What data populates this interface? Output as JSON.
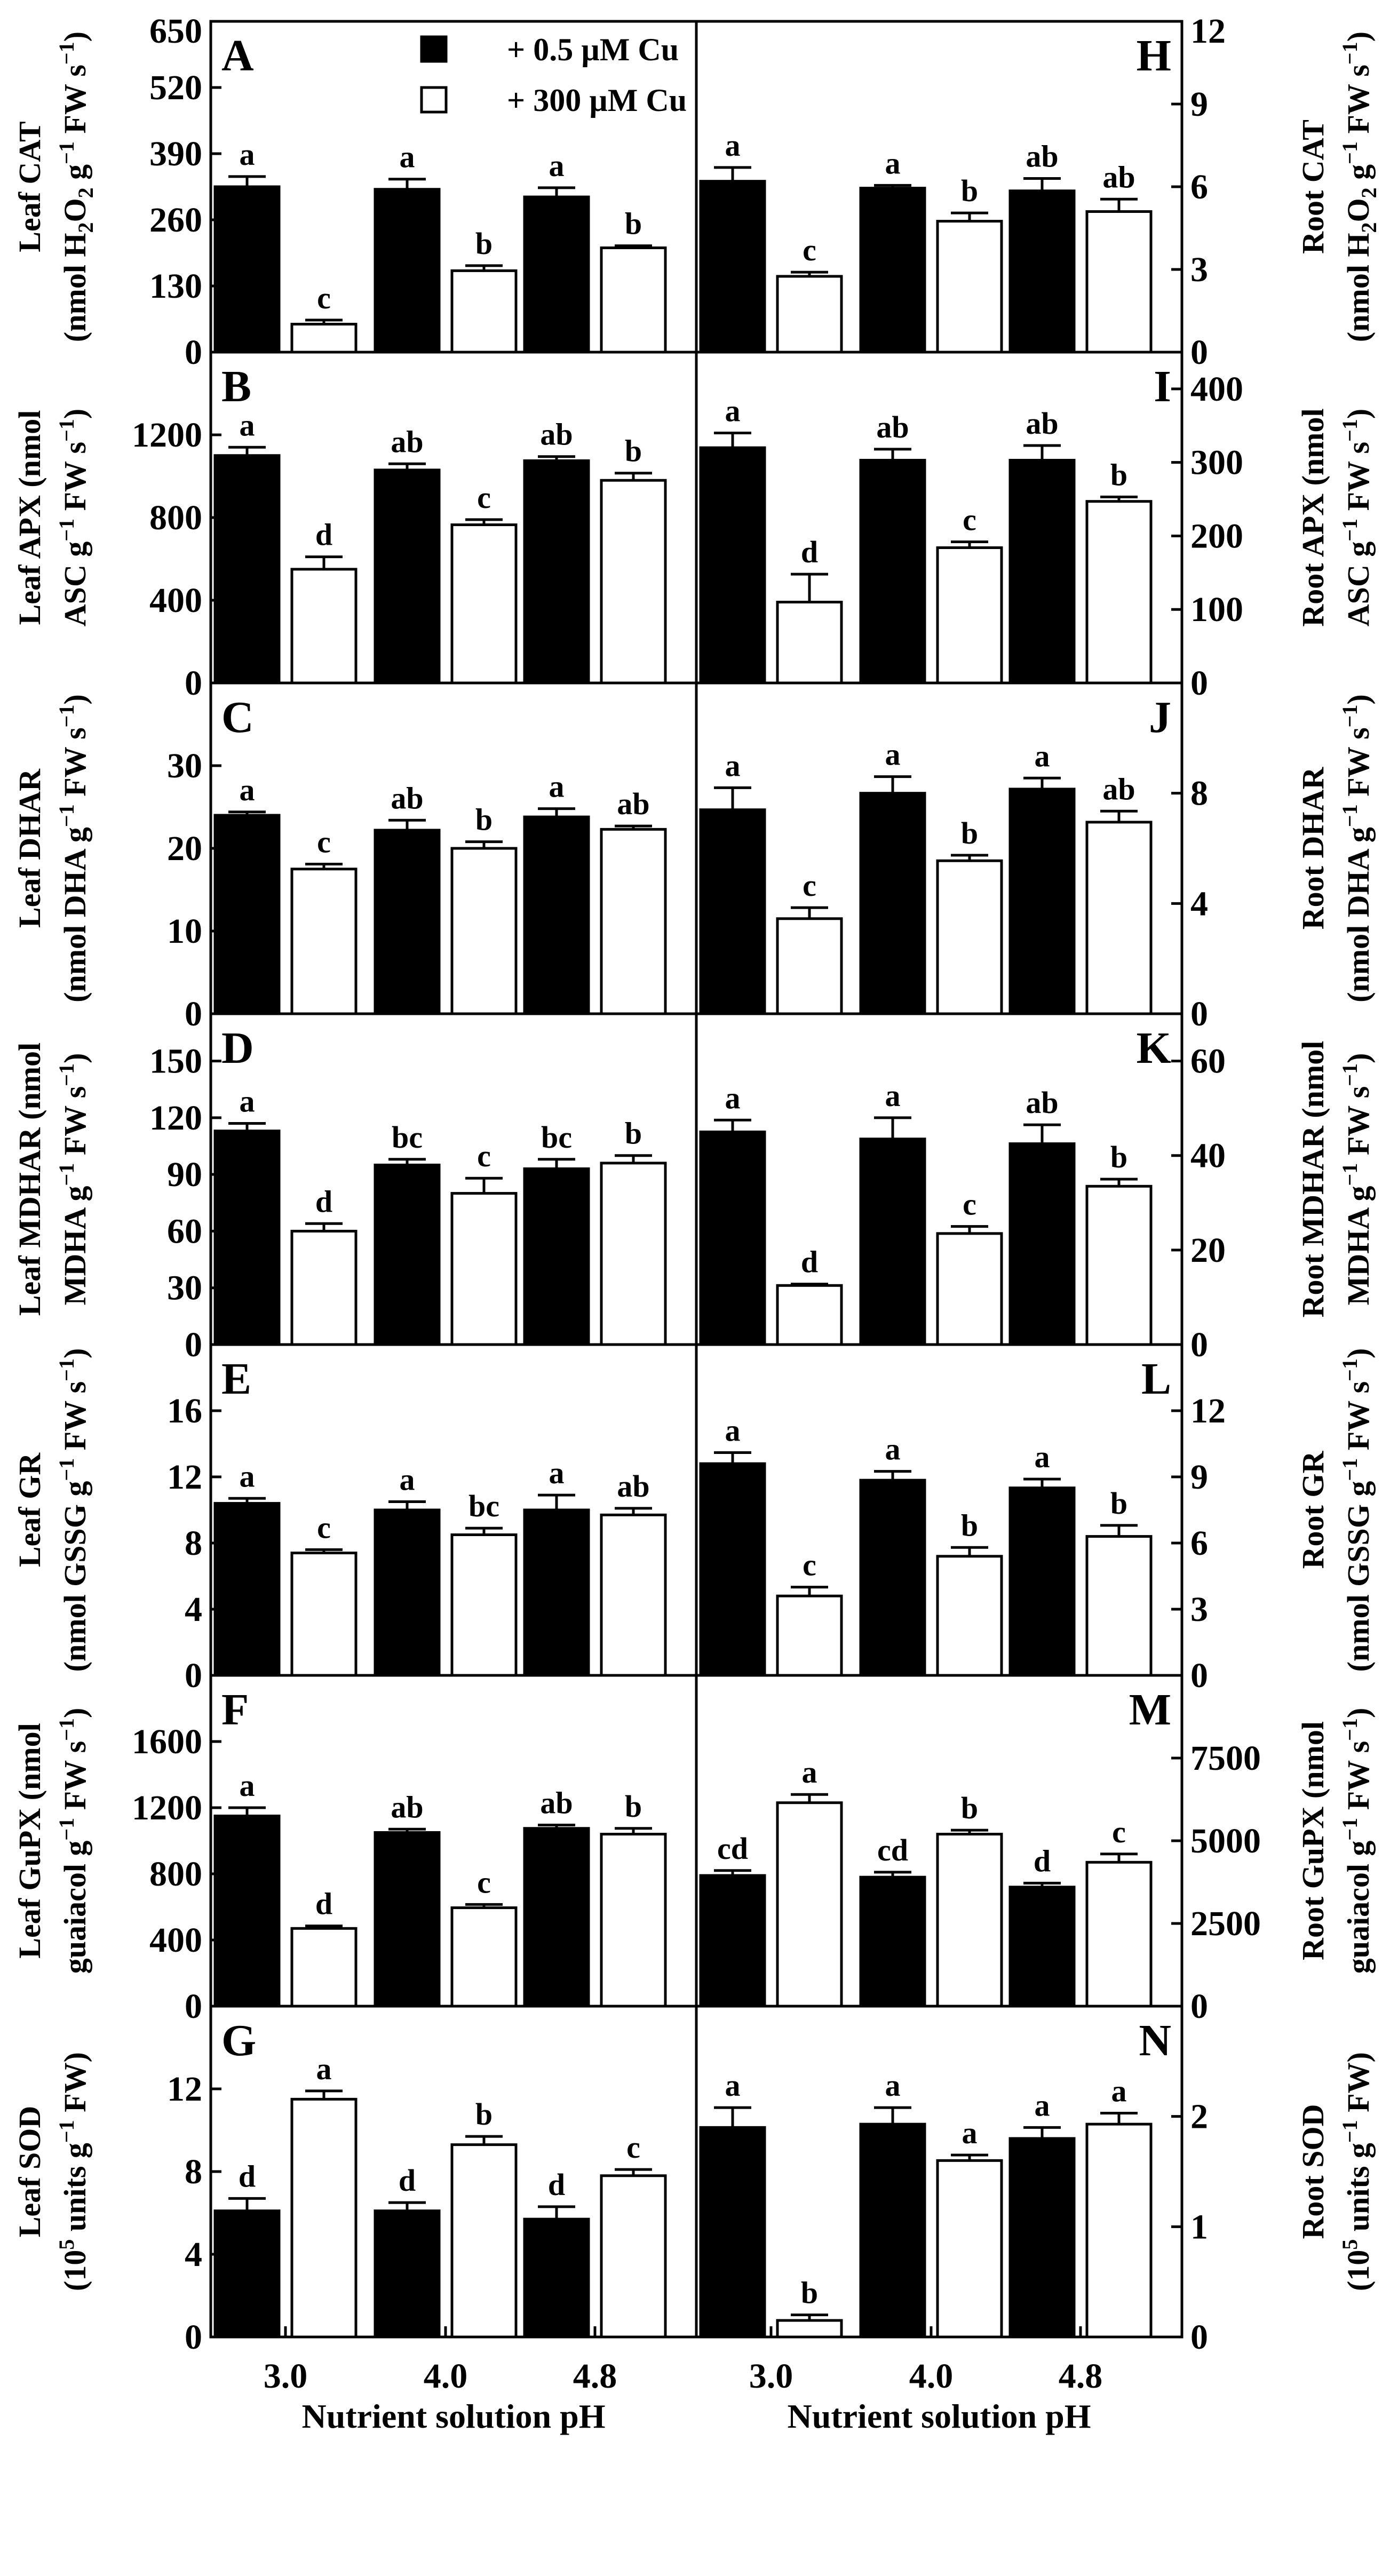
{
  "chart_data": {
    "type": "bar",
    "categories": [
      "3.0",
      "4.0",
      "4.8"
    ],
    "x_title": "Nutrient solution pH",
    "legend": [
      "+ 0.5 µM Cu",
      "+ 300 µM Cu"
    ],
    "colors": {
      "series1": "#000000",
      "series2": "#ffffff"
    },
    "panels": [
      {
        "id": "A",
        "side": "left",
        "row": 0,
        "ylabel": [
          [
            "Leaf CAT"
          ],
          [
            "(nmol H",
            {
              "sub": "2"
            },
            "O",
            {
              "sub": "2"
            },
            " g",
            {
              "sup": "−1"
            },
            " FW s",
            {
              "sup": "−1"
            },
            ")"
          ]
        ],
        "ylim": [
          0,
          650
        ],
        "ticks": [
          0,
          130,
          260,
          390,
          520,
          650
        ],
        "values": [
          [
            325,
            320,
            305
          ],
          [
            55,
            160,
            205
          ]
        ],
        "errors": [
          [
            20,
            20,
            18
          ],
          [
            8,
            10,
            4
          ]
        ],
        "letters": [
          [
            "a",
            "a",
            "a"
          ],
          [
            "c",
            "b",
            "b"
          ]
        ]
      },
      {
        "id": "B",
        "side": "left",
        "row": 1,
        "ylabel": [
          [
            "Leaf APX (nmol"
          ],
          [
            "ASC g",
            {
              "sup": "−1"
            },
            " FW s",
            {
              "sup": "−1"
            },
            ")"
          ]
        ],
        "ylim": [
          0,
          1600
        ],
        "ticks": [
          0,
          400,
          800,
          1200
        ],
        "values": [
          [
            1100,
            1030,
            1075
          ],
          [
            550,
            765,
            980
          ]
        ],
        "errors": [
          [
            40,
            30,
            20
          ],
          [
            60,
            25,
            35
          ]
        ],
        "letters": [
          [
            "a",
            "ab",
            "ab"
          ],
          [
            "d",
            "c",
            "b"
          ]
        ]
      },
      {
        "id": "C",
        "side": "left",
        "row": 2,
        "ylabel": [
          [
            "Leaf DHAR"
          ],
          [
            "(nmol DHA g",
            {
              "sup": "−1"
            },
            " FW s",
            {
              "sup": "−1"
            },
            ")"
          ]
        ],
        "ylim": [
          0,
          40
        ],
        "ticks": [
          0,
          10,
          20,
          30
        ],
        "values": [
          [
            24,
            22.2,
            23.8
          ],
          [
            17.5,
            20,
            22.3
          ]
        ],
        "errors": [
          [
            0.4,
            1.2,
            1.0
          ],
          [
            0.6,
            0.8,
            0.4
          ]
        ],
        "letters": [
          [
            "a",
            "ab",
            "a"
          ],
          [
            "c",
            "b",
            "ab"
          ]
        ]
      },
      {
        "id": "D",
        "side": "left",
        "row": 3,
        "ylabel": [
          [
            "Leaf MDHAR (nmol"
          ],
          [
            "MDHA g",
            {
              "sup": "−1"
            },
            " FW s",
            {
              "sup": "−1"
            },
            ")"
          ]
        ],
        "ylim": [
          0,
          175
        ],
        "ticks": [
          0,
          30,
          60,
          90,
          120,
          150
        ],
        "values": [
          [
            113,
            95,
            93
          ],
          [
            60,
            80,
            96
          ]
        ],
        "errors": [
          [
            4,
            3,
            5
          ],
          [
            4,
            8,
            4
          ]
        ],
        "letters": [
          [
            "a",
            "bc",
            "bc"
          ],
          [
            "d",
            "c",
            "b"
          ]
        ]
      },
      {
        "id": "E",
        "side": "left",
        "row": 4,
        "ylabel": [
          [
            "Leaf GR"
          ],
          [
            "(nmol GSSG g",
            {
              "sup": "−1"
            },
            " FW s",
            {
              "sup": "−1"
            },
            ")"
          ]
        ],
        "ylim": [
          0,
          20
        ],
        "ticks": [
          0,
          4,
          8,
          12,
          16
        ],
        "values": [
          [
            10.4,
            10,
            10
          ],
          [
            7.4,
            8.5,
            9.7
          ]
        ],
        "errors": [
          [
            0.3,
            0.5,
            0.9
          ],
          [
            0.2,
            0.4,
            0.4
          ]
        ],
        "letters": [
          [
            "a",
            "a",
            "a"
          ],
          [
            "c",
            "bc",
            "ab"
          ]
        ]
      },
      {
        "id": "F",
        "side": "left",
        "row": 5,
        "ylabel": [
          [
            "Leaf GuPX (nmol"
          ],
          [
            "guaiacol g",
            {
              "sup": "−1"
            },
            " FW s",
            {
              "sup": "−1"
            },
            ")"
          ]
        ],
        "ylim": [
          0,
          2000
        ],
        "ticks": [
          0,
          400,
          800,
          1200,
          1600
        ],
        "values": [
          [
            1150,
            1050,
            1075
          ],
          [
            470,
            595,
            1040
          ]
        ],
        "errors": [
          [
            50,
            20,
            20
          ],
          [
            15,
            20,
            35
          ]
        ],
        "letters": [
          [
            "a",
            "ab",
            "ab"
          ],
          [
            "d",
            "c",
            "b"
          ]
        ]
      },
      {
        "id": "G",
        "side": "left",
        "row": 6,
        "ylabel": [
          [
            "Leaf SOD"
          ],
          [
            "(10",
            {
              "sup": "5"
            },
            " units g",
            {
              "sup": "−1"
            },
            " FW)"
          ]
        ],
        "ylim": [
          0,
          16
        ],
        "ticks": [
          0,
          4,
          8,
          12
        ],
        "values": [
          [
            6.1,
            6.1,
            5.7
          ],
          [
            11.5,
            9.3,
            7.8
          ]
        ],
        "errors": [
          [
            0.6,
            0.4,
            0.6
          ],
          [
            0.4,
            0.4,
            0.3
          ]
        ],
        "letters": [
          [
            "d",
            "d",
            "d"
          ],
          [
            "a",
            "b",
            "c"
          ]
        ]
      },
      {
        "id": "H",
        "side": "right",
        "row": 0,
        "ylabel": [
          [
            "Root CAT"
          ],
          [
            "(nmol H",
            {
              "sub": "2"
            },
            "O",
            {
              "sub": "2"
            },
            " g",
            {
              "sup": "−1"
            },
            " FW s",
            {
              "sup": "−1"
            },
            ")"
          ]
        ],
        "ylim": [
          0,
          12
        ],
        "ticks": [
          0,
          3,
          6,
          9,
          12
        ],
        "values": [
          [
            6.2,
            5.95,
            5.85
          ],
          [
            2.75,
            4.75,
            5.1
          ]
        ],
        "errors": [
          [
            0.5,
            0.1,
            0.45
          ],
          [
            0.15,
            0.3,
            0.45
          ]
        ],
        "letters": [
          [
            "a",
            "a",
            "ab"
          ],
          [
            "c",
            "b",
            "ab"
          ]
        ]
      },
      {
        "id": "I",
        "side": "right",
        "row": 1,
        "ylabel": [
          [
            "Root APX (nmol"
          ],
          [
            "ASC g",
            {
              "sup": "−1"
            },
            " FW s",
            {
              "sup": "−1"
            },
            ")"
          ]
        ],
        "ylim": [
          0,
          450
        ],
        "ticks": [
          0,
          100,
          200,
          300,
          400
        ],
        "values": [
          [
            320,
            303,
            303
          ],
          [
            110,
            184,
            247
          ]
        ],
        "errors": [
          [
            20,
            15,
            20
          ],
          [
            38,
            8,
            6
          ]
        ],
        "letters": [
          [
            "a",
            "ab",
            "ab"
          ],
          [
            "d",
            "c",
            "b"
          ]
        ]
      },
      {
        "id": "J",
        "side": "right",
        "row": 2,
        "ylabel": [
          [
            "Root DHAR"
          ],
          [
            "(nmol DHA g",
            {
              "sup": "−1"
            },
            " FW s",
            {
              "sup": "−1"
            },
            ")"
          ]
        ],
        "ylim": [
          0,
          12
        ],
        "ticks": [
          0,
          4,
          8
        ],
        "values": [
          [
            7.4,
            8.0,
            8.15
          ],
          [
            3.45,
            5.55,
            6.95
          ]
        ],
        "errors": [
          [
            0.8,
            0.6,
            0.4
          ],
          [
            0.4,
            0.2,
            0.4
          ]
        ],
        "letters": [
          [
            "a",
            "a",
            "a"
          ],
          [
            "c",
            "b",
            "ab"
          ]
        ]
      },
      {
        "id": "K",
        "side": "right",
        "row": 3,
        "ylabel": [
          [
            "Root MDHAR (nmol"
          ],
          [
            "MDHA g",
            {
              "sup": "−1"
            },
            " FW s",
            {
              "sup": "−1"
            },
            ")"
          ]
        ],
        "ylim": [
          0,
          70
        ],
        "ticks": [
          0,
          20,
          40,
          60
        ],
        "values": [
          [
            45,
            43.5,
            42.5
          ],
          [
            12.5,
            23.5,
            33.5
          ]
        ],
        "errors": [
          [
            2.5,
            4.5,
            4
          ],
          [
            0.3,
            1.5,
            1.5
          ]
        ],
        "letters": [
          [
            "a",
            "a",
            "ab"
          ],
          [
            "d",
            "c",
            "b"
          ]
        ]
      },
      {
        "id": "L",
        "side": "right",
        "row": 4,
        "ylabel": [
          [
            "Root GR"
          ],
          [
            "(nmol GSSG g",
            {
              "sup": "−1"
            },
            " FW s",
            {
              "sup": "−1"
            },
            ")"
          ]
        ],
        "ylim": [
          0,
          15
        ],
        "ticks": [
          0,
          3,
          6,
          9,
          12
        ],
        "values": [
          [
            9.6,
            8.85,
            8.5
          ],
          [
            3.6,
            5.4,
            6.3
          ]
        ],
        "errors": [
          [
            0.5,
            0.4,
            0.4
          ],
          [
            0.4,
            0.4,
            0.5
          ]
        ],
        "letters": [
          [
            "a",
            "a",
            "a"
          ],
          [
            "c",
            "b",
            "b"
          ]
        ]
      },
      {
        "id": "M",
        "side": "right",
        "row": 5,
        "ylabel": [
          [
            "Root GuPX (nmol"
          ],
          [
            "guaiacol g",
            {
              "sup": "−1"
            },
            " FW s",
            {
              "sup": "−1"
            },
            ")"
          ]
        ],
        "ylim": [
          0,
          10000
        ],
        "ticks": [
          0,
          2500,
          5000,
          7500
        ],
        "values": [
          [
            3950,
            3900,
            3600
          ],
          [
            6150,
            5200,
            4350
          ]
        ],
        "errors": [
          [
            150,
            150,
            120
          ],
          [
            250,
            120,
            250
          ]
        ],
        "letters": [
          [
            "cd",
            "cd",
            "d"
          ],
          [
            "a",
            "b",
            "c"
          ]
        ]
      },
      {
        "id": "N",
        "side": "right",
        "row": 6,
        "ylabel": [
          [
            "Root SOD"
          ],
          [
            "(10",
            {
              "sup": "5"
            },
            " units g",
            {
              "sup": "−1"
            },
            " FW)"
          ]
        ],
        "ylim": [
          0,
          3
        ],
        "ticks": [
          0,
          1,
          2
        ],
        "values": [
          [
            1.9,
            1.93,
            1.8
          ],
          [
            0.15,
            1.6,
            1.93
          ]
        ],
        "errors": [
          [
            0.18,
            0.15,
            0.1
          ],
          [
            0.05,
            0.05,
            0.1
          ]
        ],
        "letters": [
          [
            "a",
            "a",
            "a"
          ],
          [
            "b",
            "a",
            "a"
          ]
        ]
      }
    ]
  }
}
